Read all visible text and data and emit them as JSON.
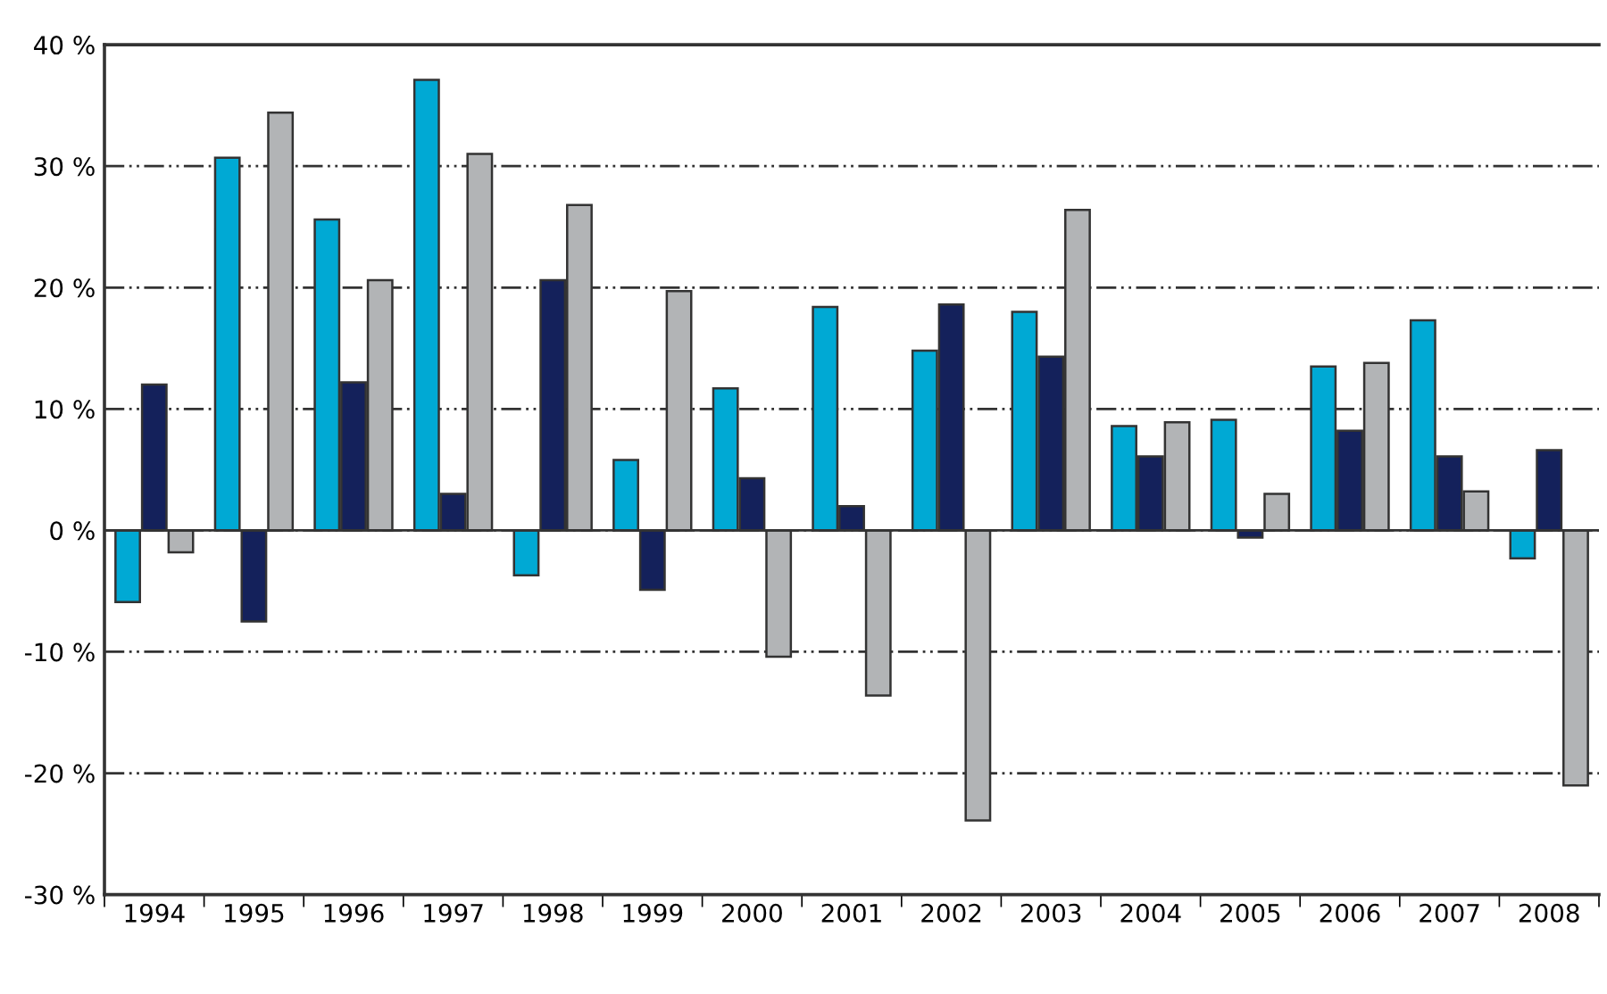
{
  "chart_data": {
    "type": "bar",
    "categories": [
      "1994",
      "1995",
      "1996",
      "1997",
      "1998",
      "1999",
      "2000",
      "2001",
      "2002",
      "2003",
      "2004",
      "2005",
      "2006",
      "2007",
      "2008"
    ],
    "series": [
      {
        "color": "#00a9d4",
        "values": [
          -5.9,
          30.7,
          25.6,
          37.1,
          -3.7,
          5.8,
          11.7,
          18.4,
          14.8,
          18.0,
          8.6,
          9.1,
          13.5,
          17.3,
          -2.3
        ]
      },
      {
        "color": "#14215b",
        "values": [
          12.0,
          -7.5,
          12.2,
          3.0,
          20.6,
          -4.9,
          4.3,
          2.0,
          18.6,
          14.3,
          6.1,
          -0.6,
          8.2,
          6.1,
          6.6
        ]
      },
      {
        "color": "#b2b4b6",
        "values": [
          -1.8,
          34.4,
          20.6,
          31.0,
          26.8,
          19.7,
          -10.4,
          -13.6,
          -23.9,
          26.4,
          8.9,
          3.0,
          13.8,
          3.2,
          -21.0
        ]
      }
    ],
    "ylim": [
      -30,
      40
    ],
    "yticks": [
      {
        "value": -30,
        "label": "-30 %"
      },
      {
        "value": -20,
        "label": "-20 %"
      },
      {
        "value": -10,
        "label": "-10 %"
      },
      {
        "value": 0,
        "label": "0 %"
      },
      {
        "value": 10,
        "label": "10 %"
      },
      {
        "value": 20,
        "label": "20 %"
      },
      {
        "value": 30,
        "label": "30 %"
      },
      {
        "value": 40,
        "label": "40 %"
      }
    ],
    "grid": "y",
    "line_style": "dashdot"
  }
}
